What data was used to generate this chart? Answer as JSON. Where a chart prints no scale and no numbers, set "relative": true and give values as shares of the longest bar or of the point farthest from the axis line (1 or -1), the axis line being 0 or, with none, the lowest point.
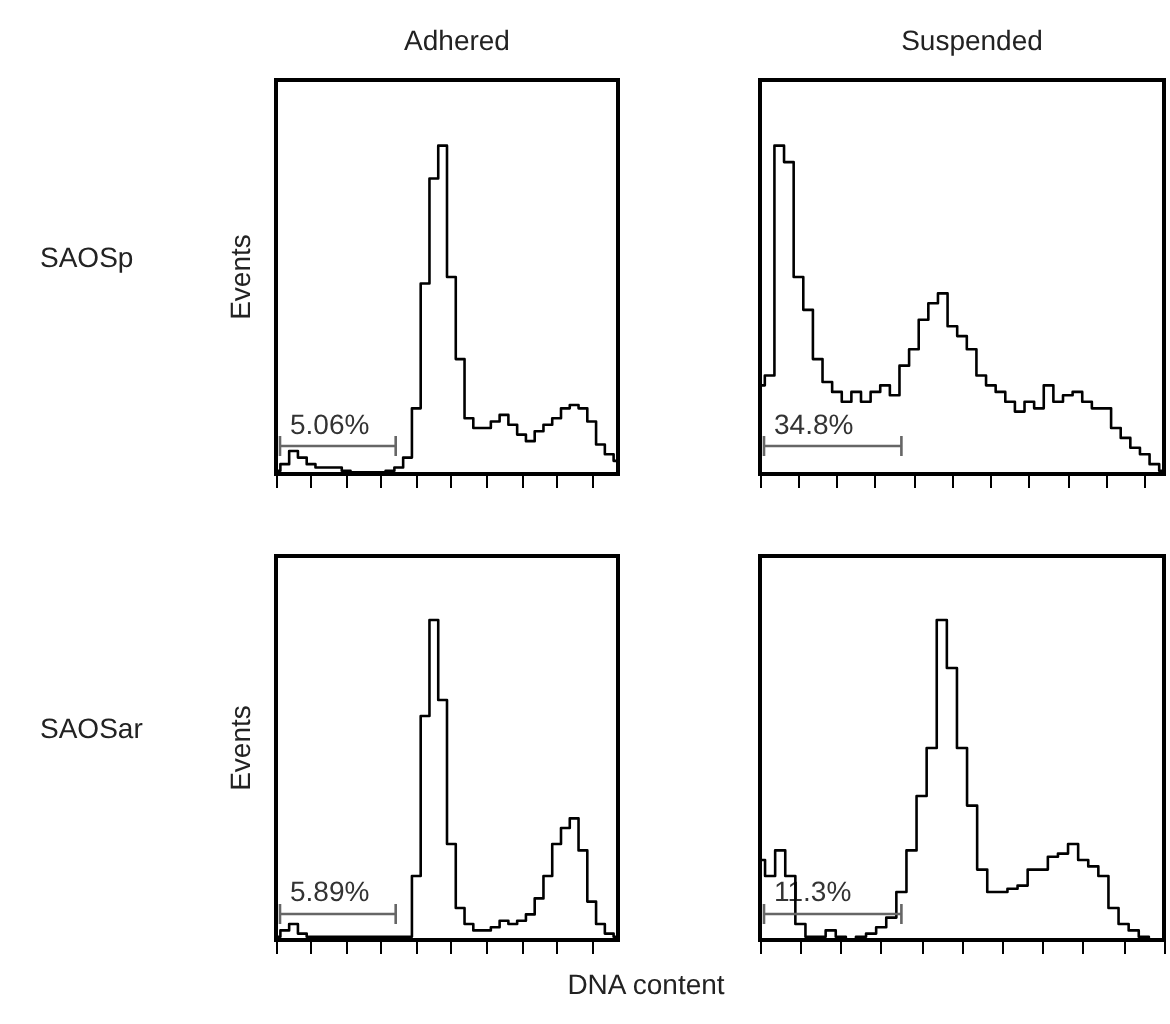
{
  "chart_data": [
    {
      "type": "step",
      "title": "Adhered",
      "ylabel": "Events",
      "relative": true,
      "annotations": [
        "SAOSp",
        "5.06%"
      ],
      "categories": [
        null,
        null,
        null,
        null,
        null,
        null,
        null,
        null,
        null,
        null,
        null,
        null,
        null,
        null,
        null,
        null,
        null,
        null,
        null,
        null,
        null,
        null,
        null,
        null,
        null,
        null,
        null,
        null,
        null,
        null,
        null,
        null,
        null,
        null,
        null,
        null,
        null,
        null,
        null,
        null
      ],
      "series": [
        {
          "color": "#000000",
          "values": [
            0.01,
            0.03,
            0.07,
            0.05,
            0.03,
            0.02,
            0.02,
            0.02,
            0.01,
            0.005,
            0.005,
            0.005,
            0.005,
            0.01,
            0.02,
            0.05,
            0.2,
            0.58,
            0.9,
            1,
            0.6,
            0.35,
            0.17,
            0.14,
            0.14,
            0.16,
            0.18,
            0.15,
            0.12,
            0.1,
            0.13,
            0.15,
            0.17,
            0.2,
            0.21,
            0.2,
            0.16,
            0.09,
            0.06,
            0.04
          ]
        }
      ]
    },
    {
      "type": "step",
      "title": "Suspended",
      "relative": true,
      "annotations": [
        "34.8%"
      ],
      "categories": [
        null,
        null,
        null,
        null,
        null,
        null,
        null,
        null,
        null,
        null,
        null,
        null,
        null,
        null,
        null,
        null,
        null,
        null,
        null,
        null,
        null,
        null,
        null,
        null,
        null,
        null,
        null,
        null,
        null,
        null,
        null,
        null,
        null,
        null,
        null,
        null,
        null,
        null,
        null,
        null,
        null,
        null,
        null
      ],
      "series": [
        {
          "color": "#000000",
          "values": [
            0.27,
            0.3,
            1,
            0.95,
            0.6,
            0.5,
            0.35,
            0.28,
            0.25,
            0.22,
            0.25,
            0.22,
            0.25,
            0.27,
            0.24,
            0.33,
            0.38,
            0.47,
            0.52,
            0.55,
            0.45,
            0.42,
            0.38,
            0.3,
            0.27,
            0.25,
            0.22,
            0.19,
            0.22,
            0.2,
            0.27,
            0.22,
            0.24,
            0.25,
            0.22,
            0.2,
            0.2,
            0.14,
            0.11,
            0.08,
            0.06,
            0.03,
            0.01
          ]
        }
      ]
    },
    {
      "type": "step",
      "ylabel": "Events",
      "xlabel": "DNA content",
      "relative": true,
      "annotations": [
        "SAOSar",
        "5.89%"
      ],
      "categories": [
        null,
        null,
        null,
        null,
        null,
        null,
        null,
        null,
        null,
        null,
        null,
        null,
        null,
        null,
        null,
        null,
        null,
        null,
        null,
        null,
        null,
        null,
        null,
        null,
        null,
        null,
        null,
        null,
        null,
        null,
        null,
        null,
        null,
        null,
        null,
        null,
        null,
        null,
        null,
        null
      ],
      "series": [
        {
          "color": "#000000",
          "values": [
            0.01,
            0.03,
            0.05,
            0.02,
            0.01,
            0.01,
            0.01,
            0.01,
            0.01,
            0.01,
            0.01,
            0.01,
            0.01,
            0.01,
            0.01,
            0.01,
            0.2,
            0.7,
            1,
            0.75,
            0.3,
            0.1,
            0.05,
            0.03,
            0.03,
            0.04,
            0.06,
            0.05,
            0.06,
            0.08,
            0.13,
            0.2,
            0.3,
            0.35,
            0.38,
            0.28,
            0.12,
            0.05,
            0.02,
            0.01
          ]
        }
      ]
    },
    {
      "type": "step",
      "relative": true,
      "annotations": [
        "11.3%"
      ],
      "categories": [
        null,
        null,
        null,
        null,
        null,
        null,
        null,
        null,
        null,
        null,
        null,
        null,
        null,
        null,
        null,
        null,
        null,
        null,
        null,
        null,
        null,
        null,
        null,
        null,
        null,
        null,
        null,
        null,
        null,
        null,
        null,
        null,
        null,
        null,
        null,
        null,
        null,
        null,
        null,
        null,
        null
      ],
      "series": [
        {
          "color": "#000000",
          "values": [
            0.25,
            0.2,
            0.28,
            0.2,
            0.05,
            0.01,
            0.01,
            0.03,
            0.01,
            0,
            0.01,
            0.02,
            0.04,
            0.07,
            0.15,
            0.28,
            0.45,
            0.6,
            1,
            0.85,
            0.6,
            0.42,
            0.22,
            0.15,
            0.15,
            0.16,
            0.17,
            0.22,
            0.22,
            0.26,
            0.27,
            0.3,
            0.25,
            0.23,
            0.2,
            0.1,
            0.05,
            0.03,
            0.01,
            0,
            0
          ]
        }
      ]
    }
  ]
}
